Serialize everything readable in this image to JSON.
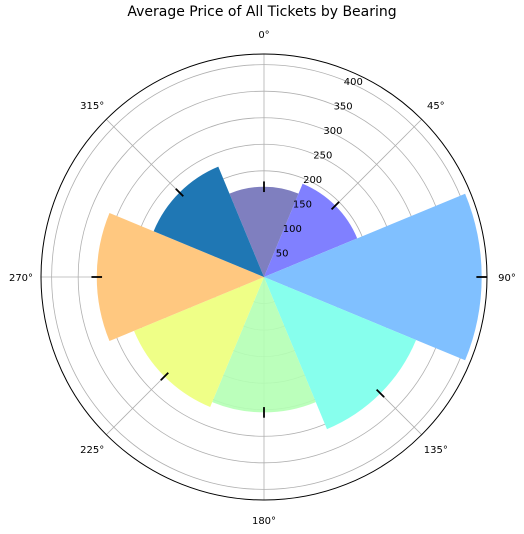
{
  "chart_data": {
    "type": "polar-bar",
    "title": "Average Price of All Tickets by Bearing",
    "angle_ticks": [
      "0°",
      "45°",
      "90°",
      "135°",
      "180°",
      "225°",
      "270°",
      "315°"
    ],
    "radial_ticks": [
      50,
      100,
      150,
      200,
      250,
      300,
      350,
      400
    ],
    "rlim": [
      0,
      420
    ],
    "grid": true,
    "bar_width_deg": 45,
    "categories": [
      "0°",
      "45°",
      "90°",
      "135°",
      "180°",
      "225°",
      "270°",
      "315°"
    ],
    "values": [
      170,
      190,
      410,
      310,
      255,
      265,
      315,
      225
    ],
    "error": [
      10,
      10,
      10,
      10,
      10,
      10,
      10,
      10
    ],
    "colors": [
      "#7f7fbf",
      "#8080ff",
      "#80c0ff",
      "#87ffed",
      "#b4ffb4",
      "#efff87",
      "#ffc880",
      "#1f77b4"
    ],
    "alpha": [
      1,
      1,
      1,
      1,
      0.9,
      1,
      1,
      1
    ]
  }
}
